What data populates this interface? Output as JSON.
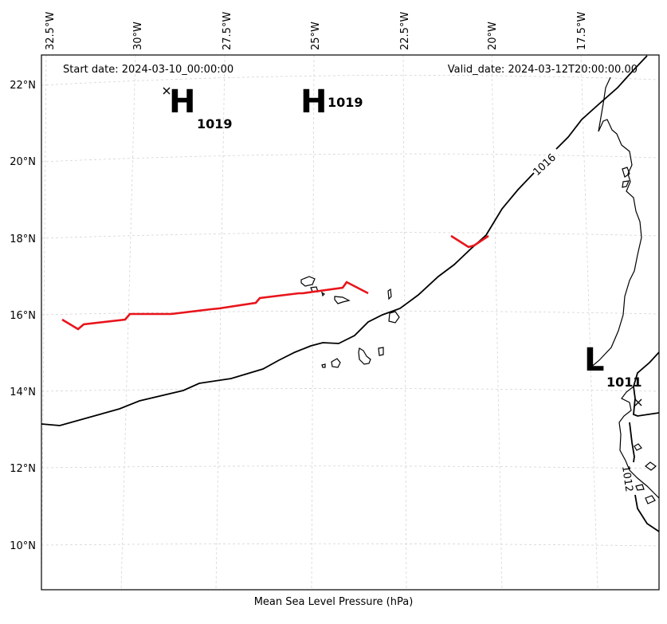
{
  "header": {
    "start_date": "Start date: 2024-03-10_00:00:00",
    "valid_date": "Valid_date: 2024-03-12T20:00:00.00"
  },
  "caption": "Mean Sea Level Pressure (hPa)",
  "axes": {
    "lon_labels": [
      "32.5°W",
      "30°W",
      "27.5°W",
      "25°W",
      "22.5°W",
      "20°W",
      "17.5°W"
    ],
    "lat_labels": [
      "22°N",
      "20°N",
      "18°N",
      "16°N",
      "14°N",
      "12°N",
      "10°N"
    ],
    "grid": true
  },
  "pressure_centers": [
    {
      "type": "H",
      "value": "1019"
    },
    {
      "type": "H",
      "value": "1019"
    },
    {
      "type": "L",
      "value": "1011"
    }
  ],
  "contour_labels": [
    "1016",
    "1012"
  ],
  "colors": {
    "front": "#e8141b",
    "isobar": "#000000",
    "grid": "#d0d0d0"
  }
}
